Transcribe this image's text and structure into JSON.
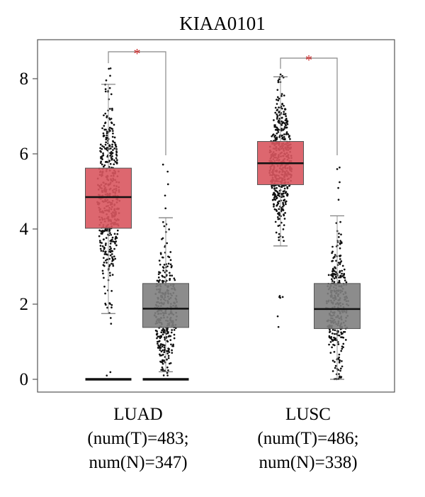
{
  "chart_data": {
    "type": "box",
    "title": "KIAA0101",
    "xlabel": "",
    "ylabel": "",
    "ylim": [
      -0.3,
      9.1
    ],
    "yticks": [
      0,
      2,
      4,
      6,
      8
    ],
    "grid": false,
    "legend": "none",
    "colors": {
      "tumor": "#d9575f",
      "normal": "#808080",
      "points": "#111111",
      "significance": "#cc2222"
    },
    "groups": [
      {
        "label_lines": [
          "LUAD",
          "(num(T)=483;",
          "num(N)=347)"
        ],
        "significance": "*",
        "boxes": [
          {
            "series": "T",
            "n": 483,
            "whisker_low": 1.75,
            "q1": 4.02,
            "median": 4.85,
            "q3": 5.62,
            "whisker_high": 7.85,
            "max": 8.3,
            "min": 0.0,
            "zero_points": true
          },
          {
            "series": "N",
            "n": 347,
            "whisker_low": 0.2,
            "q1": 1.38,
            "median": 1.88,
            "q3": 2.55,
            "whisker_high": 4.3,
            "max": 5.85,
            "min": 0.0,
            "zero_points": true
          }
        ]
      },
      {
        "label_lines": [
          "LUSC",
          "(num(T)=486;",
          "num(N)=338)"
        ],
        "significance": "*",
        "boxes": [
          {
            "series": "T",
            "n": 486,
            "whisker_low": 3.55,
            "q1": 5.18,
            "median": 5.75,
            "q3": 6.33,
            "whisker_high": 8.05,
            "max": 8.15,
            "min": 1.2,
            "zero_points": false
          },
          {
            "series": "N",
            "n": 338,
            "whisker_low": 0.0,
            "q1": 1.35,
            "median": 1.87,
            "q3": 2.55,
            "whisker_high": 4.35,
            "max": 5.85,
            "min": 0.0,
            "zero_points": false
          }
        ]
      }
    ]
  }
}
